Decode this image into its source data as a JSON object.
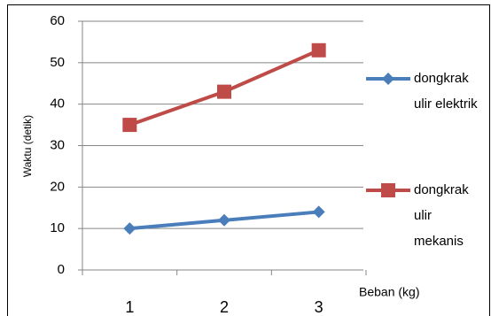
{
  "chart_data": {
    "type": "line",
    "categories": [
      "1",
      "2",
      "3"
    ],
    "series": [
      {
        "name": "dongkrak ulir elektrik",
        "color": "#4a7ebb",
        "marker": "diamond",
        "values": [
          10,
          12,
          14
        ]
      },
      {
        "name": "dongkrak ulir mekanis",
        "color": "#be4b48",
        "marker": "square",
        "values": [
          35,
          43,
          53
        ]
      }
    ],
    "ylim": [
      0,
      60
    ],
    "yticks": [
      0,
      10,
      20,
      30,
      40,
      50,
      60
    ],
    "grid": true,
    "x_label": "Beban (kg)",
    "y_label": "Waktu (detik)",
    "legend": "right"
  }
}
